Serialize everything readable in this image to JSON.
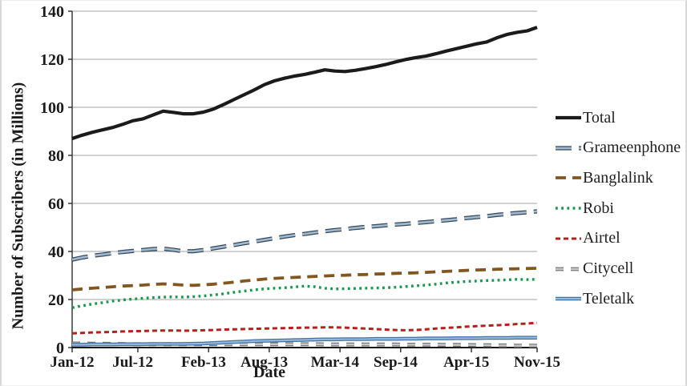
{
  "chart_data": {
    "type": "line",
    "title": "",
    "xlabel": "Date",
    "ylabel": "Number of Subscribers (in Millions)",
    "ylim": [
      0,
      140
    ],
    "ytick_step": 20,
    "ytick_labels": [
      "0",
      "20",
      "40",
      "60",
      "80",
      "100",
      "120",
      "140"
    ],
    "grid": "horizontal",
    "legend_position": "right",
    "x_unit": "month",
    "x_start": "Jan-12",
    "x_end": "Nov-15",
    "n_points": 47,
    "xticks": [
      {
        "label": "Jan-12",
        "month": 0
      },
      {
        "label": "Jul-12",
        "month": 6
      },
      {
        "label": "Feb-13",
        "month": 13
      },
      {
        "label": "Aug-13",
        "month": 19
      },
      {
        "label": "Mar-14",
        "month": 26
      },
      {
        "label": "Sep-14",
        "month": 32
      },
      {
        "label": "Apr-15",
        "month": 39
      },
      {
        "label": "Nov-15",
        "month": 46
      }
    ],
    "series": [
      {
        "name": "Total",
        "color": "#1b1b1b",
        "dash": "solid",
        "width": 4.2,
        "values": [
          87.0,
          88.4,
          89.6,
          90.6,
          91.6,
          92.9,
          94.4,
          95.2,
          96.8,
          98.4,
          97.9,
          97.3,
          97.3,
          98.0,
          99.3,
          101.2,
          103.2,
          105.2,
          107.2,
          109.4,
          111.0,
          112.1,
          113.0,
          113.7,
          114.6,
          115.6,
          115.1,
          114.9,
          115.4,
          116.1,
          116.9,
          117.8,
          118.9,
          119.9,
          120.7,
          121.3,
          122.3,
          123.4,
          124.4,
          125.4,
          126.4,
          127.2,
          128.9,
          130.3,
          131.2,
          131.8,
          133.3
        ]
      },
      {
        "name": "Grameenphone",
        "color": "#a3b9cc",
        "outline": "#33475c",
        "dash": "20 9",
        "width": 5.2,
        "values": [
          36.6,
          37.5,
          38.2,
          38.7,
          39.3,
          39.8,
          40.2,
          40.6,
          41.0,
          41.2,
          40.7,
          40.1,
          40.1,
          40.6,
          41.3,
          42.0,
          42.7,
          43.4,
          44.1,
          44.8,
          45.5,
          46.2,
          46.8,
          47.3,
          47.9,
          48.4,
          48.9,
          49.3,
          49.8,
          50.2,
          50.5,
          50.9,
          51.2,
          51.5,
          51.9,
          52.2,
          52.6,
          53.0,
          53.4,
          53.9,
          54.3,
          54.7,
          55.2,
          55.6,
          56.0,
          56.3,
          56.7
        ]
      },
      {
        "name": "Banglalink",
        "color": "#82561f",
        "dash": "13 8",
        "width": 3.8,
        "values": [
          24.0,
          24.4,
          24.7,
          25.0,
          25.3,
          25.6,
          25.8,
          26.0,
          26.3,
          26.5,
          26.3,
          26.0,
          25.9,
          26.1,
          26.4,
          26.8,
          27.2,
          27.7,
          28.1,
          28.5,
          28.8,
          29.0,
          29.2,
          29.4,
          29.6,
          29.8,
          30.0,
          30.1,
          30.3,
          30.4,
          30.6,
          30.7,
          30.9,
          31.0,
          31.1,
          31.3,
          31.5,
          31.7,
          31.9,
          32.1,
          32.3,
          32.4,
          32.6,
          32.7,
          32.8,
          32.9,
          33.0
        ]
      },
      {
        "name": "Robi",
        "color": "#17994d",
        "dash": "2.8 4.4",
        "width": 3.4,
        "values": [
          16.6,
          17.4,
          18.1,
          18.7,
          19.3,
          19.8,
          20.2,
          20.5,
          20.8,
          21.0,
          21.1,
          21.0,
          21.2,
          21.5,
          21.9,
          22.4,
          23.0,
          23.5,
          24.0,
          24.4,
          24.7,
          24.9,
          25.2,
          25.6,
          25.3,
          24.7,
          24.4,
          24.5,
          24.6,
          24.7,
          24.8,
          24.9,
          25.1,
          25.4,
          25.7,
          26.0,
          26.4,
          26.9,
          27.2,
          27.5,
          27.7,
          27.9,
          28.0,
          28.2,
          28.4,
          28.3,
          28.4
        ]
      },
      {
        "name": "Airtel",
        "color": "#b4201a",
        "dash": "6 4",
        "width": 3.0,
        "values": [
          5.9,
          6.1,
          6.3,
          6.4,
          6.5,
          6.7,
          6.8,
          6.9,
          7.0,
          7.1,
          7.1,
          7.0,
          7.1,
          7.2,
          7.3,
          7.5,
          7.6,
          7.7,
          7.8,
          7.9,
          8.0,
          8.1,
          8.2,
          8.3,
          8.3,
          8.4,
          8.4,
          8.3,
          8.1,
          7.9,
          7.7,
          7.5,
          7.3,
          7.2,
          7.3,
          7.6,
          7.9,
          8.2,
          8.4,
          8.7,
          8.9,
          9.1,
          9.3,
          9.5,
          9.8,
          10.0,
          10.3
        ]
      },
      {
        "name": "Citycell",
        "color": "#c9c9c9",
        "outline": "#777777",
        "dash": "10 9",
        "width": 4.8,
        "values": [
          1.7,
          1.7,
          1.6,
          1.6,
          1.5,
          1.5,
          1.4,
          1.4,
          1.4,
          1.4,
          1.4,
          1.4,
          1.4,
          1.4,
          1.4,
          1.4,
          1.4,
          1.4,
          1.4,
          1.4,
          1.4,
          1.4,
          1.4,
          1.4,
          1.4,
          1.3,
          1.3,
          1.3,
          1.3,
          1.3,
          1.3,
          1.3,
          1.3,
          1.2,
          1.2,
          1.2,
          1.2,
          1.1,
          1.1,
          1.1,
          1.0,
          1.0,
          0.9,
          0.9,
          0.8,
          0.8,
          0.8
        ]
      },
      {
        "name": "Teletalk",
        "color": "#94bade",
        "outline": "#43709f",
        "dash": "solid",
        "width": 4.6,
        "values": [
          1.2,
          1.2,
          1.3,
          1.3,
          1.3,
          1.4,
          1.4,
          1.4,
          1.5,
          1.5,
          1.5,
          1.5,
          1.6,
          1.7,
          1.9,
          2.1,
          2.3,
          2.5,
          2.7,
          2.8,
          2.9,
          3.0,
          3.1,
          3.2,
          3.3,
          3.4,
          3.4,
          3.5,
          3.5,
          3.5,
          3.6,
          3.6,
          3.6,
          3.7,
          3.7,
          3.8,
          3.8,
          3.8,
          3.9,
          3.9,
          3.9,
          4.0,
          4.0,
          4.0,
          4.1,
          4.1,
          4.1
        ]
      }
    ]
  }
}
